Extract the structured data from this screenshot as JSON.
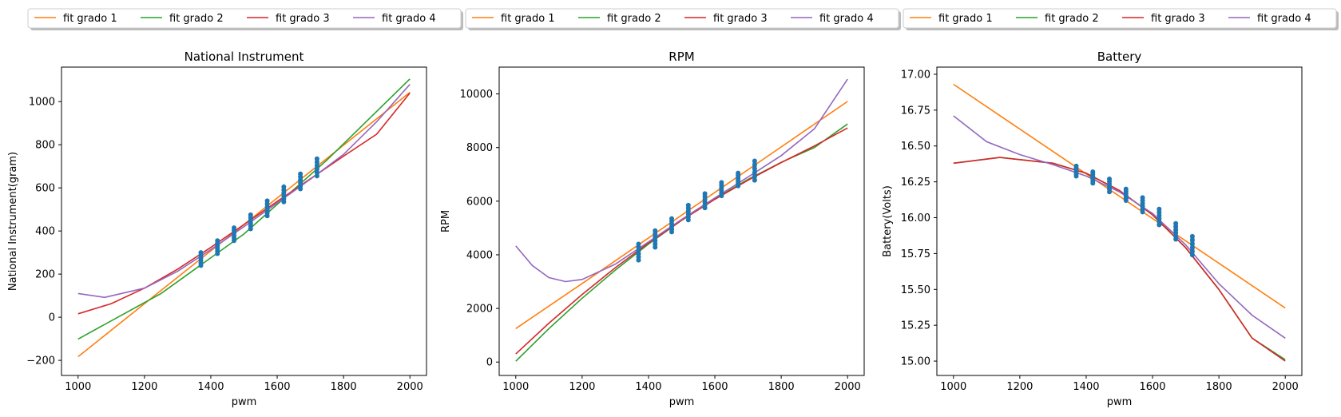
{
  "chart_data": [
    {
      "type": "line",
      "title": "National Instrument",
      "xlabel": "pwm",
      "ylabel": "National Instrument(gram)",
      "xlim": [
        950,
        2050
      ],
      "ylim": [
        -270,
        1160
      ],
      "xticks": [
        1000,
        1200,
        1400,
        1600,
        1800,
        2000
      ],
      "xtick_labels": [
        "1000",
        "1200",
        "1400",
        "1600",
        "1800",
        "2000"
      ],
      "yticks": [
        -200,
        0,
        200,
        400,
        600,
        800,
        1000
      ],
      "ytick_labels": [
        "−200",
        "0",
        "200",
        "400",
        "600",
        "800",
        "1000"
      ],
      "legend_position": "top",
      "series": [
        {
          "name": "fit grado 1",
          "color": "#ff7f0e",
          "x": [
            1000,
            1250,
            1500,
            1750,
            2000
          ],
          "y": [
            -183,
            124,
            430,
            737,
            1043
          ]
        },
        {
          "name": "fit grado 2",
          "color": "#2ca02c",
          "x": [
            1000,
            1250,
            1500,
            1750,
            2000
          ],
          "y": [
            -101,
            110,
            386,
            729,
            1105
          ]
        },
        {
          "name": "fit grado 3",
          "color": "#d62728",
          "x": [
            1000,
            1100,
            1200,
            1300,
            1400,
            1500,
            1600,
            1700,
            1800,
            1900,
            2000
          ],
          "y": [
            16,
            63,
            135,
            223,
            324,
            430,
            537,
            642,
            747,
            849,
            1040
          ]
        },
        {
          "name": "fit grado 4",
          "color": "#9467bd",
          "x": [
            1000,
            1080,
            1200,
            1300,
            1400,
            1500,
            1600,
            1700,
            1800,
            1900,
            2000
          ],
          "y": [
            110,
            92,
            135,
            213,
            314,
            420,
            530,
            640,
            755,
            907,
            1080
          ]
        }
      ],
      "scatter": {
        "color": "#1f77b4",
        "x": [
          1370,
          1420,
          1470,
          1520,
          1570,
          1620,
          1670,
          1720
        ],
        "ymin": [
          240,
          295,
          355,
          410,
          470,
          535,
          595,
          655
        ],
        "ymax": [
          300,
          355,
          415,
          475,
          540,
          605,
          665,
          735
        ]
      }
    },
    {
      "type": "line",
      "title": "RPM",
      "xlabel": "pwm",
      "ylabel": "RPM",
      "xlim": [
        950,
        2050
      ],
      "ylim": [
        -500,
        11000
      ],
      "xticks": [
        1000,
        1200,
        1400,
        1600,
        1800,
        2000
      ],
      "xtick_labels": [
        "1000",
        "1200",
        "1400",
        "1600",
        "1800",
        "2000"
      ],
      "yticks": [
        0,
        2000,
        4000,
        6000,
        8000,
        10000
      ],
      "ytick_labels": [
        "0",
        "2000",
        "4000",
        "6000",
        "8000",
        "10000"
      ],
      "legend_position": "top",
      "series": [
        {
          "name": "fit grado 1",
          "color": "#ff7f0e",
          "x": [
            1000,
            1250,
            1500,
            1750,
            2000
          ],
          "y": [
            1250,
            3350,
            5480,
            7600,
            9720
          ]
        },
        {
          "name": "fit grado 2",
          "color": "#2ca02c",
          "x": [
            1000,
            1100,
            1200,
            1300,
            1400,
            1500,
            1600,
            1700,
            1800,
            1900,
            2000
          ],
          "y": [
            30,
            1250,
            2380,
            3430,
            4400,
            5290,
            6090,
            6810,
            7450,
            8000,
            8880
          ]
        },
        {
          "name": "fit grado 3",
          "color": "#d62728",
          "x": [
            1000,
            1100,
            1200,
            1300,
            1400,
            1500,
            1600,
            1700,
            1800,
            1900,
            2000
          ],
          "y": [
            300,
            1450,
            2520,
            3520,
            4440,
            5290,
            6070,
            6780,
            7440,
            8060,
            8730
          ]
        },
        {
          "name": "fit grado 4",
          "color": "#9467bd",
          "x": [
            1000,
            1050,
            1100,
            1150,
            1200,
            1300,
            1400,
            1500,
            1600,
            1700,
            1800,
            1900,
            2000
          ],
          "y": [
            4330,
            3600,
            3150,
            3000,
            3080,
            3650,
            4480,
            5320,
            6120,
            6900,
            7700,
            8700,
            10550
          ]
        }
      ],
      "scatter": {
        "color": "#1f77b4",
        "x": [
          1370,
          1420,
          1470,
          1520,
          1570,
          1620,
          1670,
          1720
        ],
        "ymin": [
          3800,
          4280,
          4850,
          5300,
          5750,
          6200,
          6570,
          6780
        ],
        "ymax": [
          4400,
          4900,
          5350,
          5850,
          6280,
          6700,
          7050,
          7500
        ]
      }
    },
    {
      "type": "line",
      "title": "Battery",
      "xlabel": "pwm",
      "ylabel": "Battery(Volts)",
      "xlim": [
        950,
        2050
      ],
      "ylim": [
        14.9,
        17.05
      ],
      "xticks": [
        1000,
        1200,
        1400,
        1600,
        1800,
        2000
      ],
      "xtick_labels": [
        "1000",
        "1200",
        "1400",
        "1600",
        "1800",
        "2000"
      ],
      "yticks": [
        15.0,
        15.25,
        15.5,
        15.75,
        16.0,
        16.25,
        16.5,
        16.75,
        17.0
      ],
      "ytick_labels": [
        "15.00",
        "15.25",
        "15.50",
        "15.75",
        "16.00",
        "16.25",
        "16.50",
        "16.75",
        "17.00"
      ],
      "legend_position": "top",
      "series": [
        {
          "name": "fit grado 1",
          "color": "#ff7f0e",
          "x": [
            1000,
            1250,
            1500,
            1750,
            2000
          ],
          "y": [
            16.93,
            16.54,
            16.15,
            15.76,
            15.37
          ]
        },
        {
          "name": "fit grado 2",
          "color": "#2ca02c",
          "x": [
            1000,
            1140,
            1300,
            1400,
            1500,
            1600,
            1700,
            1800,
            1900,
            2000
          ],
          "y": [
            16.38,
            16.42,
            16.38,
            16.31,
            16.19,
            16.02,
            15.79,
            15.5,
            15.16,
            15.01
          ]
        },
        {
          "name": "fit grado 3",
          "color": "#d62728",
          "x": [
            1000,
            1140,
            1300,
            1400,
            1500,
            1600,
            1700,
            1800,
            1900,
            2000
          ],
          "y": [
            16.38,
            16.42,
            16.38,
            16.31,
            16.19,
            16.02,
            15.79,
            15.5,
            15.16,
            15.0
          ]
        },
        {
          "name": "fit grado 4",
          "color": "#9467bd",
          "x": [
            1000,
            1100,
            1200,
            1300,
            1400,
            1500,
            1600,
            1700,
            1800,
            1900,
            2000
          ],
          "y": [
            16.71,
            16.53,
            16.44,
            16.37,
            16.29,
            16.18,
            16.03,
            15.81,
            15.54,
            15.32,
            15.16
          ]
        }
      ],
      "scatter": {
        "color": "#1f77b4",
        "x": [
          1370,
          1420,
          1470,
          1520,
          1570,
          1620,
          1670,
          1720
        ],
        "ymin": [
          16.29,
          16.24,
          16.18,
          16.12,
          16.04,
          15.95,
          15.85,
          15.74
        ],
        "ymax": [
          16.36,
          16.32,
          16.27,
          16.2,
          16.14,
          16.06,
          15.96,
          15.87
        ]
      }
    }
  ]
}
